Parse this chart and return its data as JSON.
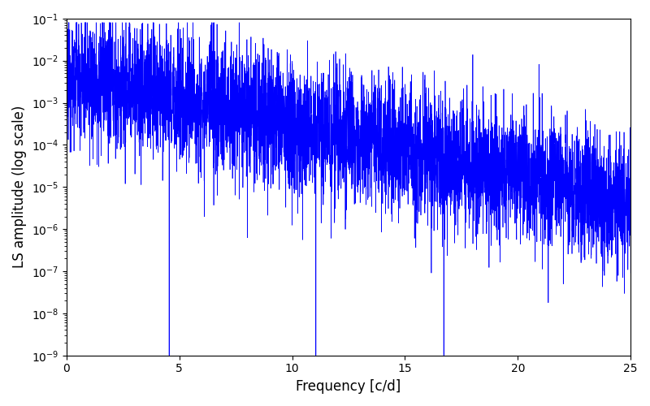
{
  "title": "",
  "xlabel": "Frequency [c/d]",
  "ylabel": "LS amplitude (log scale)",
  "xlim": [
    0,
    25
  ],
  "ylim": [
    1e-09,
    0.1
  ],
  "line_color": "#0000ff",
  "line_width": 0.5,
  "background_color": "#ffffff",
  "freq_max": 25.0,
  "n_points": 5000,
  "seed": 12345,
  "base_amplitude": 0.005,
  "decay_rate": 0.28,
  "noise_level": 1.8
}
